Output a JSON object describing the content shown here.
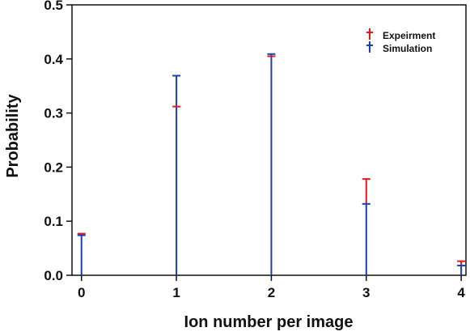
{
  "chart_data": {
    "type": "scatter",
    "title": "",
    "xlabel": "Ion number per image",
    "ylabel": "Probability",
    "xlim": [
      -0.1,
      4.05
    ],
    "ylim": [
      0.0,
      0.5
    ],
    "x_ticks": [
      0,
      1,
      2,
      3,
      4
    ],
    "y_ticks": [
      0.0,
      0.1,
      0.2,
      0.3,
      0.4,
      0.5
    ],
    "x_tick_labels": [
      "0",
      "1",
      "2",
      "3",
      "4"
    ],
    "y_tick_labels": [
      "0.0",
      "0.1",
      "0.2",
      "0.3",
      "0.4",
      "0.5"
    ],
    "grid": false,
    "legend_position": "top-right",
    "categories": [
      0,
      1,
      2,
      3,
      4
    ],
    "series": [
      {
        "name": "Expeirment",
        "color": "#e01b1b",
        "values": [
          0.077,
          0.312,
          0.405,
          0.178,
          0.026
        ],
        "style": "stem-marker"
      },
      {
        "name": "Simulation",
        "color": "#1c3fb0",
        "values": [
          0.074,
          0.369,
          0.409,
          0.132,
          0.018
        ],
        "style": "stem-marker"
      }
    ]
  }
}
